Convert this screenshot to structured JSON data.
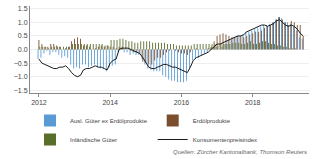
{
  "chart_data": {
    "type": "bar",
    "x": [
      2012.0,
      2012.083,
      2012.167,
      2012.25,
      2012.333,
      2012.417,
      2012.5,
      2012.583,
      2012.667,
      2012.75,
      2012.833,
      2012.917,
      2013.0,
      2013.083,
      2013.167,
      2013.25,
      2013.333,
      2013.417,
      2013.5,
      2013.583,
      2013.667,
      2013.75,
      2013.833,
      2013.917,
      2014.0,
      2014.083,
      2014.167,
      2014.25,
      2014.333,
      2014.417,
      2014.5,
      2014.583,
      2014.667,
      2014.75,
      2014.833,
      2014.917,
      2015.0,
      2015.083,
      2015.167,
      2015.25,
      2015.333,
      2015.417,
      2015.5,
      2015.583,
      2015.667,
      2015.75,
      2015.833,
      2015.917,
      2016.0,
      2016.083,
      2016.167,
      2016.25,
      2016.333,
      2016.417,
      2016.5,
      2016.583,
      2016.667,
      2016.75,
      2016.833,
      2016.917,
      2017.0,
      2017.083,
      2017.167,
      2017.25,
      2017.333,
      2017.417,
      2017.5,
      2017.583,
      2017.667,
      2017.75,
      2017.833,
      2017.917,
      2018.0,
      2018.083,
      2018.167,
      2018.25,
      2018.333,
      2018.417,
      2018.5,
      2018.583,
      2018.667,
      2018.75,
      2018.833,
      2018.917,
      2019.0,
      2019.083,
      2019.167,
      2019.25,
      2019.333,
      2019.417
    ],
    "series": [
      {
        "name": "Ausl. Güter ex Erdölprodukte",
        "color": "#5b9bd5",
        "values": [
          -0.35,
          -0.3,
          -0.15,
          -0.05,
          -0.2,
          -0.1,
          -0.1,
          -0.2,
          -0.3,
          -0.25,
          -0.3,
          -0.55,
          -0.7,
          -0.65,
          -0.7,
          -0.55,
          -0.55,
          -0.65,
          -0.6,
          -0.55,
          -0.65,
          -0.7,
          -0.7,
          -0.8,
          -0.65,
          -0.6,
          -0.55,
          -0.1,
          0.0,
          -0.1,
          -0.1,
          -0.2,
          -0.15,
          -0.2,
          -0.2,
          -0.35,
          -0.55,
          -0.7,
          -0.75,
          -0.8,
          -0.8,
          -0.8,
          -0.95,
          -1.0,
          -1.1,
          -1.15,
          -1.15,
          -1.2,
          -1.2,
          -1.2,
          -1.15,
          -0.7,
          -0.4,
          -0.35,
          -0.3,
          -0.2,
          -0.15,
          -0.1,
          0.05,
          0.1,
          0.1,
          0.0,
          0.1,
          0.2,
          0.3,
          0.35,
          0.45,
          0.5,
          0.5,
          0.55,
          0.65,
          0.65,
          0.7,
          0.75,
          0.8,
          0.85,
          0.9,
          0.9,
          0.95,
          1.0,
          1.1,
          1.2,
          1.15,
          1.0,
          1.0,
          0.95,
          0.85,
          0.7,
          0.45,
          0.4
        ]
      },
      {
        "name": "Erdölprodukte",
        "color": "#7b4f2e",
        "values": [
          0.35,
          0.2,
          0.1,
          0.1,
          0.2,
          0.2,
          0.15,
          0.1,
          0.0,
          0.05,
          0.1,
          0.3,
          0.4,
          0.45,
          0.4,
          0.15,
          0.15,
          0.1,
          0.0,
          0.05,
          0.1,
          0.15,
          0.1,
          0.15,
          0.1,
          0.1,
          0.05,
          0.1,
          0.1,
          0.0,
          0.0,
          -0.05,
          -0.1,
          -0.1,
          -0.15,
          -0.45,
          -0.5,
          -0.55,
          -0.55,
          -0.4,
          -0.3,
          -0.3,
          -0.2,
          -0.1,
          -0.05,
          0.0,
          -0.05,
          -0.1,
          -0.15,
          -0.15,
          -0.2,
          -0.1,
          0.0,
          0.05,
          0.0,
          0.0,
          0.0,
          0.05,
          0.1,
          0.3,
          0.5,
          0.55,
          0.6,
          0.55,
          0.5,
          0.45,
          0.45,
          0.5,
          0.5,
          0.45,
          0.5,
          0.55,
          0.6,
          0.65,
          0.65,
          0.7,
          0.8,
          0.85,
          0.9,
          1.0,
          1.1,
          1.2,
          1.1,
          1.0,
          0.9,
          1.05,
          1.0,
          0.9,
          0.9,
          0.5
        ]
      },
      {
        "name": "Inländische Güter",
        "color": "#5a6e2c",
        "values": [
          0.1,
          0.1,
          0.1,
          0.05,
          0.1,
          0.1,
          0.1,
          0.1,
          0.1,
          0.1,
          0.1,
          0.2,
          0.2,
          0.2,
          0.2,
          0.2,
          0.2,
          0.2,
          0.2,
          0.2,
          0.2,
          0.2,
          0.15,
          0.15,
          0.35,
          0.35,
          0.35,
          0.4,
          0.4,
          0.35,
          0.3,
          0.3,
          0.25,
          0.25,
          0.3,
          0.3,
          0.3,
          0.3,
          0.25,
          0.25,
          0.25,
          0.25,
          0.25,
          0.2,
          0.2,
          0.2,
          0.15,
          0.15,
          0.15,
          0.15,
          0.15,
          0.15,
          0.2,
          0.2,
          0.2,
          0.2,
          0.2,
          0.2,
          0.2,
          0.2,
          0.15,
          0.2,
          0.2,
          0.2,
          0.2,
          0.25,
          0.25,
          0.25,
          0.2,
          0.2,
          0.25,
          0.3,
          0.2,
          0.2,
          0.25,
          0.3,
          0.3,
          0.25,
          0.2,
          0.2,
          0.15,
          0.15,
          0.1,
          0.1,
          0.05,
          0.05,
          0.05,
          0.0,
          0.0,
          0.0
        ]
      },
      {
        "name": "Konsumentenpreisindex",
        "type": "line",
        "color": "#1a1a1a",
        "values": [
          -0.35,
          -0.5,
          -0.55,
          -0.6,
          -0.65,
          -0.7,
          -0.7,
          -0.65,
          -0.65,
          -0.6,
          -0.7,
          -0.85,
          -0.95,
          -1.0,
          -0.95,
          -0.75,
          -0.7,
          -0.7,
          -0.65,
          -0.6,
          -0.65,
          -0.65,
          -0.7,
          -0.75,
          -0.5,
          -0.4,
          -0.35,
          0.0,
          0.05,
          0.05,
          0.05,
          0.0,
          -0.05,
          -0.1,
          -0.15,
          -0.3,
          -0.5,
          -0.65,
          -0.7,
          -0.7,
          -0.65,
          -0.6,
          -0.55,
          -0.55,
          -0.6,
          -0.65,
          -0.65,
          -0.7,
          -0.75,
          -0.8,
          -0.85,
          -0.65,
          -0.4,
          -0.3,
          -0.25,
          -0.2,
          -0.15,
          -0.1,
          0.0,
          0.1,
          0.2,
          0.2,
          0.25,
          0.3,
          0.35,
          0.4,
          0.45,
          0.5,
          0.5,
          0.55,
          0.65,
          0.7,
          0.75,
          0.8,
          0.85,
          0.9,
          0.9,
          0.85,
          0.9,
          0.95,
          1.05,
          1.1,
          1.0,
          0.9,
          0.85,
          0.9,
          0.85,
          0.75,
          0.6,
          0.5
        ]
      }
    ],
    "xlim": [
      2011.75,
      2019.58
    ],
    "xticks": [
      2012,
      2014,
      2016,
      2018
    ],
    "ylim": [
      -1.6,
      1.6
    ],
    "yticks": [
      {
        "value": -1.5,
        "label": "−1.5"
      },
      {
        "value": -1.0,
        "label": "−1.0"
      },
      {
        "value": -0.5,
        "label": "−0.5"
      },
      {
        "value": 0.0,
        "label": "0.0"
      },
      0.5,
      {
        "value": 1.0,
        "label": "1.0"
      },
      1.5
    ],
    "grid": true,
    "legend": "bottom",
    "annotations": [
      "Quellen: Zürcher Kantonalbank, Thomson Reuters"
    ]
  }
}
